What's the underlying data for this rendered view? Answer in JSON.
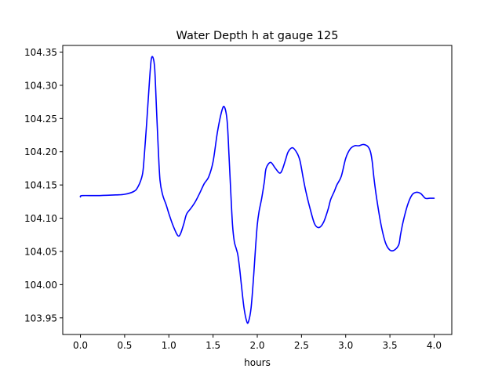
{
  "chart_data": {
    "type": "line",
    "title": "Water Depth h at gauge 125",
    "xlabel": "hours",
    "ylabel": "",
    "xlim": [
      -0.2,
      4.2
    ],
    "ylim": [
      103.925,
      104.36
    ],
    "grid": false,
    "xticks": [
      0.0,
      0.5,
      1.0,
      1.5,
      2.0,
      2.5,
      3.0,
      3.5,
      4.0
    ],
    "xtick_labels": [
      "0.0",
      "0.5",
      "1.0",
      "1.5",
      "2.0",
      "2.5",
      "3.0",
      "3.5",
      "4.0"
    ],
    "yticks": [
      103.95,
      104.0,
      104.05,
      104.1,
      104.15,
      104.2,
      104.25,
      104.3,
      104.35
    ],
    "ytick_labels": [
      "103.95",
      "104.00",
      "104.05",
      "104.10",
      "104.15",
      "104.20",
      "104.25",
      "104.30",
      "104.35"
    ],
    "series": [
      {
        "color": "#0000ff",
        "x": [
          0.0,
          0.02,
          0.2,
          0.4,
          0.5,
          0.6,
          0.65,
          0.7,
          0.72,
          0.75,
          0.78,
          0.8,
          0.82,
          0.84,
          0.86,
          0.88,
          0.9,
          0.93,
          0.97,
          1.0,
          1.05,
          1.1,
          1.13,
          1.17,
          1.2,
          1.25,
          1.3,
          1.35,
          1.4,
          1.45,
          1.5,
          1.55,
          1.6,
          1.63,
          1.66,
          1.68,
          1.7,
          1.72,
          1.74,
          1.76,
          1.78,
          1.8,
          1.82,
          1.85,
          1.88,
          1.9,
          1.93,
          1.96,
          1.98,
          2.0,
          2.02,
          2.05,
          2.08,
          2.1,
          2.15,
          2.2,
          2.25,
          2.28,
          2.32,
          2.35,
          2.4,
          2.45,
          2.48,
          2.5,
          2.52,
          2.55,
          2.6,
          2.65,
          2.7,
          2.75,
          2.8,
          2.83,
          2.87,
          2.9,
          2.95,
          3.0,
          3.05,
          3.1,
          3.15,
          3.2,
          3.25,
          3.28,
          3.3,
          3.32,
          3.35,
          3.4,
          3.45,
          3.5,
          3.55,
          3.6,
          3.62,
          3.65,
          3.7,
          3.75,
          3.8,
          3.85,
          3.9,
          3.95,
          4.0
        ],
        "y": [
          104.132,
          104.134,
          104.134,
          104.135,
          104.136,
          104.14,
          104.147,
          104.165,
          104.19,
          104.245,
          104.305,
          104.338,
          104.342,
          104.325,
          104.265,
          104.205,
          104.157,
          104.135,
          104.12,
          104.107,
          104.088,
          104.074,
          104.076,
          104.092,
          104.106,
          104.115,
          104.125,
          104.138,
          104.152,
          104.162,
          104.185,
          104.23,
          104.262,
          104.267,
          104.245,
          104.195,
          104.14,
          104.09,
          104.065,
          104.055,
          104.045,
          104.025,
          104.0,
          103.965,
          103.945,
          103.944,
          103.965,
          104.015,
          104.055,
          104.09,
          104.11,
          104.13,
          104.155,
          104.175,
          104.184,
          104.176,
          104.168,
          104.172,
          104.188,
          104.2,
          104.206,
          104.198,
          104.188,
          104.175,
          104.16,
          104.14,
          104.113,
          104.091,
          104.086,
          104.094,
          104.113,
          104.128,
          104.14,
          104.15,
          104.163,
          104.19,
          104.204,
          104.209,
          104.209,
          104.211,
          104.208,
          104.2,
          104.185,
          104.16,
          104.13,
          104.09,
          104.063,
          104.052,
          104.052,
          104.06,
          104.075,
          104.095,
          104.12,
          104.135,
          104.139,
          104.137,
          104.13,
          104.13,
          104.13
        ]
      }
    ]
  }
}
